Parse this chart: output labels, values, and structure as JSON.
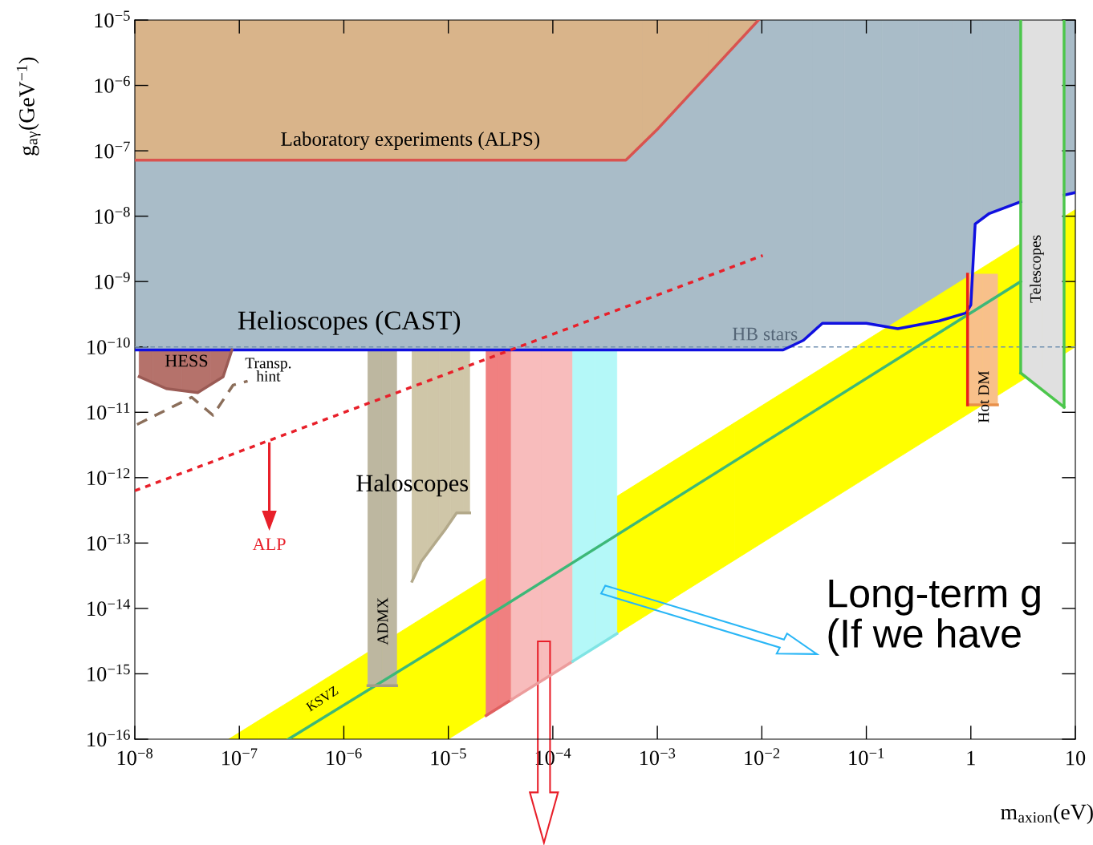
{
  "chart_data": {
    "type": "line",
    "log": "xy",
    "grid": false,
    "marker": "none",
    "xlabel": "m$_{axion}$(eV)",
    "ylabel": "g$_{aγ}$(GeV$^{−1}$)",
    "xlim": [
      1e-08,
      10
    ],
    "ylim": [
      1e-16,
      1e-05
    ],
    "xticks": [
      {
        "value": 1e-08,
        "label": "10$^{−8}$"
      },
      {
        "value": 1e-07,
        "label": "10$^{−7}$"
      },
      {
        "value": 1e-06,
        "label": "10$^{−6}$"
      },
      {
        "value": 1e-05,
        "label": "10$^{−5}$"
      },
      {
        "value": 0.0001,
        "label": "10$^{−4}$"
      },
      {
        "value": 0.001,
        "label": "10$^{−3}$"
      },
      {
        "value": 0.01,
        "label": "10$^{−2}$"
      },
      {
        "value": 0.1,
        "label": "10$^{−1}$"
      },
      1,
      10
    ],
    "yticks": [
      {
        "value": 1e-16,
        "label": "10$^{−16}$"
      },
      {
        "value": 1e-15,
        "label": "10$^{−15}$"
      },
      {
        "value": 1e-14,
        "label": "10$^{−14}$"
      },
      {
        "value": 1e-13,
        "label": "10$^{−13}$"
      },
      {
        "value": 1e-12,
        "label": "10$^{−12}$"
      },
      {
        "value": 1e-11,
        "label": "10$^{−11}$"
      },
      {
        "value": 1e-10,
        "label": "10$^{−10}$"
      },
      {
        "value": 1e-09,
        "label": "10$^{−9}$"
      },
      {
        "value": 1e-08,
        "label": "10$^{−8}$"
      },
      {
        "value": 1e-07,
        "label": "10$^{−7}$"
      },
      {
        "value": 1e-06,
        "label": "10$^{−6}$"
      },
      {
        "value": 1e-05,
        "label": "10$^{−5}$"
      }
    ],
    "series": [
      {
        "color": "#1010e0",
        "colors": [
          "#a9bcc8",
          "#a9bcc8",
          "#a9bcc8",
          "#a9bcc8",
          "#a9bcc8",
          "#a9bcc8",
          "#a9bcc8",
          "#a9bcc8",
          "#a9bcc8",
          "#a9bcc8",
          "#a9bcc8",
          "#a9bcc8",
          "#a9bcc8",
          "#a9bcc8",
          "#a9bcc8"
        ],
        "line_style": "solid",
        "x": [
          1e-08,
          0.016,
          0.025,
          0.038,
          0.1,
          0.2,
          0.5,
          0.9,
          1.0,
          1.1,
          1.5,
          3.0,
          5.0,
          7.8,
          10
        ],
        "values": [
          9e-11,
          9e-11,
          1.26e-10,
          2.3e-10,
          2.3e-10,
          1.9e-10,
          2.5e-10,
          3.3e-10,
          4.4e-10,
          7.6e-09,
          1.1e-08,
          1.66e-08,
          null,
          2.1e-08,
          2.3e-08
        ],
        "lower": [
          9e-11,
          9e-11,
          1.26e-10,
          2.3e-10,
          2.3e-10,
          1.9e-10,
          2.5e-10,
          3.3e-10,
          4.4e-10,
          7.6e-09,
          1.1e-08,
          1.66e-08,
          null,
          2.1e-08,
          2.3e-08
        ],
        "upper": [
          1e-05,
          1e-05,
          1e-05,
          1e-05,
          1e-05,
          1e-05,
          1e-05,
          1e-05,
          1e-05,
          1e-05,
          1e-05,
          1e-05,
          null,
          1e-05,
          1e-05
        ]
      },
      {
        "color": "#d9534f",
        "colors": [
          "#d9b48a",
          "#d9b48a",
          "#d9b48a",
          "#d9b48a"
        ],
        "line_style": "solid",
        "x": [
          1e-08,
          0.0005,
          0.00102,
          0.0093
        ],
        "values": [
          7.2e-08,
          7.2e-08,
          2.2e-07,
          1e-05
        ],
        "lower": [
          7.2e-08,
          7.2e-08,
          2.2e-07,
          1e-05
        ],
        "upper": [
          1e-05,
          1e-05,
          1e-05,
          1e-05
        ]
      },
      {
        "color": "#3cb878",
        "colors": [
          "#ffff00",
          "#ffff00",
          "#ffff00",
          "#ffff00",
          "#ffff00"
        ],
        "line_style": "solid",
        "x": [
          7.9e-08,
          2.95e-07,
          1e-05,
          3.0,
          10
        ],
        "values": [
          null,
          1e-16,
          3.2e-15,
          1e-09,
          null
        ],
        "lower": [
          1e-16,
          1e-16,
          1e-16,
          3e-11,
          1e-10
        ],
        "upper": [
          1e-16,
          3.7e-16,
          1.26e-14,
          3.8e-09,
          1.26e-08
        ]
      },
      {
        "color": "#a39d85",
        "colors": [
          "#bdb7a0",
          "#bdb7a0"
        ],
        "line_style": "solid",
        "x": [
          1.7e-06,
          3.2e-06
        ],
        "values": [
          6.6e-16,
          6.6e-16
        ],
        "lower": [
          6.6e-16,
          6.6e-16
        ],
        "upper": [
          9e-11,
          9e-11
        ]
      },
      {
        "color": "#b3a98a",
        "colors": [
          "#cfc6a8",
          "#cfc6a8",
          "#cfc6a8",
          "#cfc6a8",
          "#cfc6a8",
          "#cfc6a8"
        ],
        "line_style": "solid",
        "x": [
          4.5e-06,
          5.5e-06,
          7.2e-06,
          9.3e-06,
          1.2e-05,
          1.6e-05
        ],
        "values": [
          2.6e-14,
          5.2e-14,
          9.3e-14,
          1.6e-13,
          2.9e-13,
          2.9e-13
        ],
        "lower": [
          2.6e-14,
          5.2e-14,
          9.3e-14,
          1.6e-13,
          2.9e-13,
          2.9e-13
        ],
        "upper": [
          9e-11,
          9e-11,
          9e-11,
          9e-11,
          9e-11,
          9e-11
        ]
      },
      {
        "color": "#e06060",
        "colors": [
          "#f08080",
          "#f08080"
        ],
        "line_style": "solid",
        "x": [
          2.3e-05,
          4e-05
        ],
        "values": [
          2.3e-16,
          4e-16
        ],
        "lower": [
          2.3e-16,
          4e-16
        ],
        "upper": [
          9e-11,
          9e-11
        ]
      },
      {
        "color": "#ec9c9c",
        "colors": [
          "#f8bcbc",
          "#f8bcbc"
        ],
        "line_style": "solid",
        "x": [
          4e-05,
          0.000155
        ],
        "values": [
          4e-16,
          1.55e-15
        ],
        "lower": [
          4e-16,
          1.55e-15
        ],
        "upper": [
          9e-11,
          9e-11
        ]
      },
      {
        "color": "#80e4e4",
        "colors": [
          "#b4f8f8",
          "#b4f8f8"
        ],
        "line_style": "solid",
        "x": [
          0.000155,
          0.00041
        ],
        "values": [
          1.55e-15,
          4.1e-15
        ],
        "lower": [
          1.55e-15,
          4.1e-15
        ],
        "upper": [
          9e-11,
          9e-11
        ]
      },
      {
        "color": "#9a5a54",
        "colors": [
          "#b5726b",
          "#b5726b",
          "#b5726b",
          "#b5726b",
          "#b5726b"
        ],
        "line_style": "solid",
        "x": [
          1.1e-08,
          2e-08,
          4e-08,
          7e-08,
          8.5e-08
        ],
        "values": [
          3.5e-11,
          2.3e-11,
          2e-11,
          3.5e-11,
          9e-11
        ],
        "lower": [
          3.5e-11,
          2.3e-11,
          2e-11,
          3.5e-11,
          9e-11
        ],
        "upper": [
          9e-11,
          9e-11,
          9e-11,
          9e-11,
          9e-11
        ]
      },
      {
        "color": "#4cc64c",
        "colors": [
          "#e0e0e0",
          "#e0e0e0"
        ],
        "line_style": "solid",
        "x": [
          3.0,
          7.8
        ],
        "values": [
          4e-11,
          1.2e-11
        ],
        "lower": [
          4e-11,
          1.2e-11
        ],
        "upper": [
          1e-05,
          1e-05
        ]
      },
      {
        "color": "#e8904a",
        "colors": [
          "#f8c08a",
          "#f8c08a"
        ],
        "line_style": "solid",
        "x": [
          0.93,
          1.8
        ],
        "values": [
          1.3e-11,
          1.3e-11
        ],
        "lower": [
          1.3e-11,
          1.3e-11
        ],
        "upper": [
          1.3e-09,
          1.3e-09
        ]
      },
      {
        "color": "#4cc64c",
        "line_style": "solid",
        "x": [
          3.0,
          3.0
        ],
        "values": [
          1e-05,
          4e-11
        ]
      },
      {
        "color": "#4cc64c",
        "line_style": "solid",
        "x": [
          7.8,
          7.8
        ],
        "values": [
          1.2e-11,
          1e-05
        ]
      },
      {
        "color": "#e8201a",
        "line_style": "solid",
        "x": [
          0.93,
          0.93
        ],
        "values": [
          1.3e-11,
          1.3e-09
        ]
      },
      {
        "color": "#8b6e5a",
        "line_style": "dashed",
        "x": [
          1.05e-08,
          3.5e-08,
          5.6e-08,
          8.7e-08,
          1.2e-07
        ],
        "values": [
          6.5e-12,
          1.7e-11,
          9e-12,
          2.6e-11,
          3e-11
        ]
      },
      {
        "color": "#e8202a",
        "line_style": "dotted",
        "x": [
          1e-08,
          0.0102
        ],
        "values": [
          6.3e-13,
          2.5e-09
        ]
      }
    ],
    "ref_lines": [
      {
        "axis": "y",
        "value": 1e-10,
        "label": "HB stars",
        "color": "#7090b0",
        "line_style": "dashed"
      }
    ],
    "annotations": [
      "Laboratory experiments (ALPS)",
      "Helioscopes (CAST)",
      "HESS",
      "Transp.\nhint",
      "Haloscopes",
      "ADMX",
      "KSVZ",
      "ALP",
      "Telescopes",
      "Hot DM",
      "Long-term g\n(If we have"
    ]
  }
}
